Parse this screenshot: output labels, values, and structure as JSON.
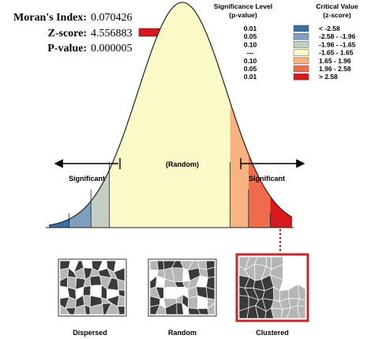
{
  "stats": {
    "morans_index_label": "Moran's Index:",
    "morans_index_value": "0.070426",
    "z_score_label": "Z-score:",
    "z_score_value": "4.556883",
    "p_value_label": "P-value:",
    "p_value_value": "0.000005"
  },
  "legend": {
    "significance_title_1": "Significance Level",
    "significance_title_2": "(p-value)",
    "critical_title_1": "Critical Value",
    "critical_title_2": "(z-score)",
    "rows": [
      {
        "p": "0.01",
        "z": "< -2.58",
        "color": "#3a6ea5"
      },
      {
        "p": "0.05",
        "z": "-2.58 - -1.96",
        "color": "#7f9fc0"
      },
      {
        "p": "0.10",
        "z": "-1.96 - -1.65",
        "color": "#c4cfc1"
      },
      {
        "p": "---",
        "z": "-1.65 - 1.65",
        "color": "#fafac8"
      },
      {
        "p": "0.10",
        "z": "1.65 - 1.96",
        "color": "#f9b383"
      },
      {
        "p": "0.05",
        "z": "1.96 - 2.58",
        "color": "#ef6b4d"
      },
      {
        "p": "0.01",
        "z": "> 2.58",
        "color": "#d7191c"
      }
    ]
  },
  "curve": {
    "center_label": "(Random)",
    "left_label": "Significant",
    "right_label": "Significant"
  },
  "maps": [
    {
      "label": "Dispersed"
    },
    {
      "label": "Random"
    },
    {
      "label": "Clustered"
    }
  ],
  "colors": {
    "z_marker": "#d7191c",
    "selected_frame": "#c0282b"
  }
}
